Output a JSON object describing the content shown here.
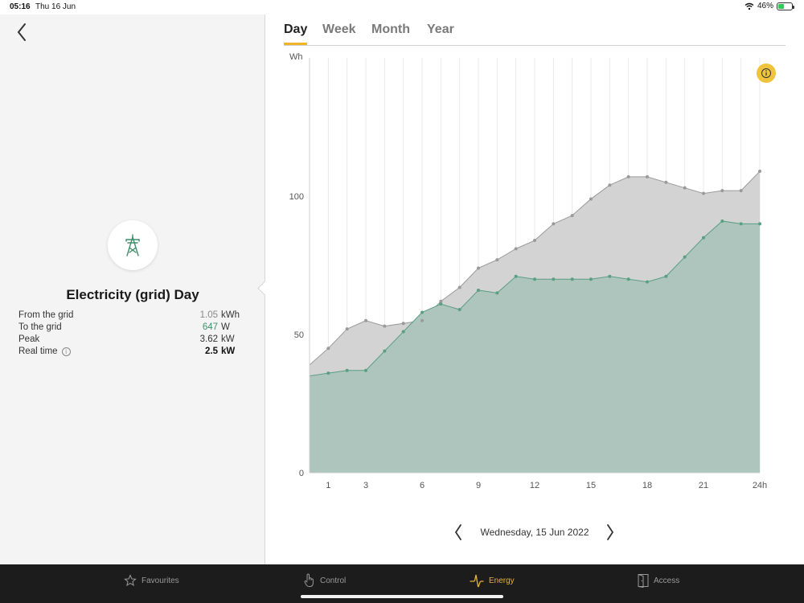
{
  "status_bar": {
    "time": "05:16",
    "date": "Thu 16 Jun",
    "battery": "46%",
    "battery_level": 0.46,
    "icons": [
      "wifi-icon",
      "battery-charging-icon"
    ]
  },
  "left_pane": {
    "device_icon": "power-pylon-icon",
    "title": "Electricity (grid) Day",
    "stats": [
      {
        "label": "From the grid",
        "value": "1.05",
        "unit": "kWh",
        "style": "muted"
      },
      {
        "label": "To the grid",
        "value": "647",
        "unit": "W",
        "style": "green"
      },
      {
        "label": "Peak",
        "value": "3.62",
        "unit": "kW",
        "style": "normal"
      },
      {
        "label": "Real time",
        "value": "2.5",
        "unit": "kW",
        "style": "bold",
        "has_info": true
      }
    ]
  },
  "tabs": [
    {
      "label": "Day",
      "active": true
    },
    {
      "label": "Week",
      "active": false
    },
    {
      "label": "Month",
      "active": false
    },
    {
      "label": "Year",
      "active": false
    }
  ],
  "chart_data": {
    "type": "area",
    "ylabel": "Wh",
    "ylim": [
      0,
      150
    ],
    "yticks": [
      0,
      50,
      100
    ],
    "xlim": [
      0,
      24
    ],
    "xtick_labels": [
      {
        "x": 1,
        "label": "1"
      },
      {
        "x": 3,
        "label": "3"
      },
      {
        "x": 6,
        "label": "6"
      },
      {
        "x": 9,
        "label": "9"
      },
      {
        "x": 12,
        "label": "12"
      },
      {
        "x": 15,
        "label": "15"
      },
      {
        "x": 18,
        "label": "18"
      },
      {
        "x": 21,
        "label": "21"
      },
      {
        "x": 24,
        "label": "24h"
      }
    ],
    "grid": "vertical",
    "x": [
      0,
      1,
      2,
      3,
      4,
      5,
      6,
      7,
      8,
      9,
      10,
      11,
      12,
      13,
      14,
      15,
      16,
      17,
      18,
      19,
      20,
      21,
      22,
      23,
      24
    ],
    "series": [
      {
        "color": "#d3d3d3",
        "stroke": "#9a9a9a",
        "values": [
          39,
          45,
          52,
          55,
          53,
          54,
          55,
          62,
          67,
          74,
          77,
          81,
          84,
          90,
          93,
          99,
          104,
          107,
          107,
          105,
          103,
          101,
          102,
          102,
          109
        ]
      },
      {
        "color": "#adc5bd",
        "stroke": "#5a9f84",
        "values": [
          35,
          36,
          37,
          37,
          44,
          51,
          58,
          61,
          59,
          66,
          65,
          71,
          70,
          70,
          70,
          70,
          71,
          70,
          69,
          71,
          78,
          85,
          91,
          90,
          90
        ]
      }
    ]
  },
  "info_button": "info-icon",
  "date_nav": {
    "date": "Wednesday, 15 Jun 2022"
  },
  "tabbar": {
    "items": [
      {
        "label": "Favourites",
        "icon": "star-icon",
        "active": false
      },
      {
        "label": "Control",
        "icon": "hand-touch-icon",
        "active": false
      },
      {
        "label": "Energy",
        "icon": "energy-wave-icon",
        "active": true
      },
      {
        "label": "Access",
        "icon": "door-icon",
        "active": false
      }
    ]
  }
}
